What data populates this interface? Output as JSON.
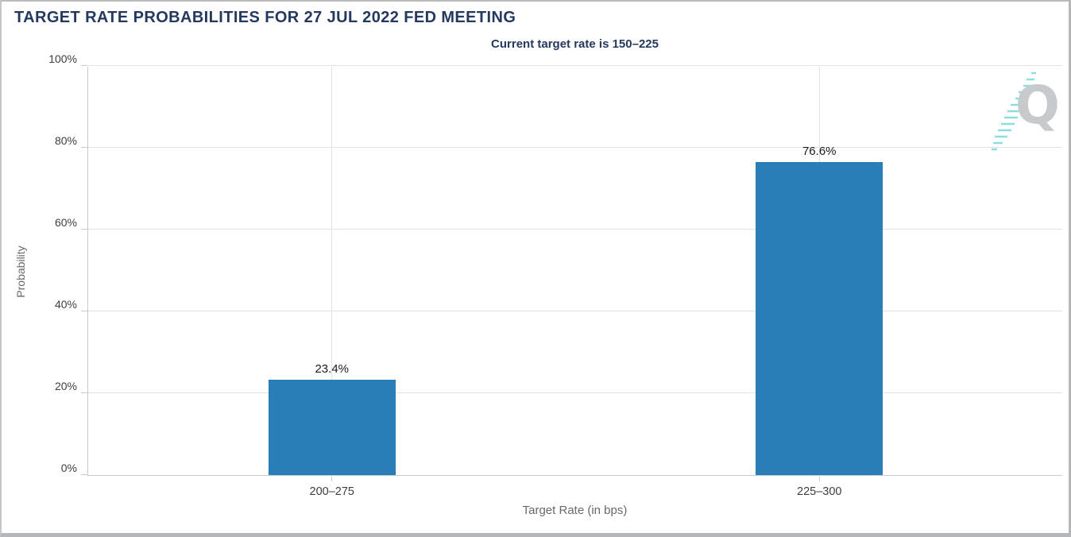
{
  "page": {
    "title": "TARGET RATE PROBABILITIES FOR 27 JUL 2022 FED MEETING",
    "subtitle": "Current target rate is 150–225"
  },
  "watermark": {
    "letter": "Q"
  },
  "colors": {
    "bar": "#2a7eb8",
    "title_navy": "#24395e",
    "gridline": "#e3e3e3",
    "axis_line": "#c9c9c9",
    "watermark_gray": "#c7cacc",
    "watermark_teal": "#8edde2"
  },
  "chart_data": {
    "type": "bar",
    "title": "TARGET RATE PROBABILITIES FOR 27 JUL 2022 FED MEETING",
    "subtitle": "Current target rate is 150–225",
    "categories": [
      "200–275",
      "225–300"
    ],
    "values": [
      23.4,
      76.6
    ],
    "value_labels": [
      "23.4%",
      "76.6%"
    ],
    "xlabel": "Target Rate (in bps)",
    "ylabel": "Probability",
    "ylim": [
      0,
      100
    ],
    "yticks": [
      0,
      20,
      40,
      60,
      80,
      100
    ],
    "ytick_labels": [
      "0%",
      "20%",
      "40%",
      "60%",
      "80%",
      "100%"
    ],
    "grid": true,
    "legend": false,
    "bar_color": "#2a7eb8"
  }
}
